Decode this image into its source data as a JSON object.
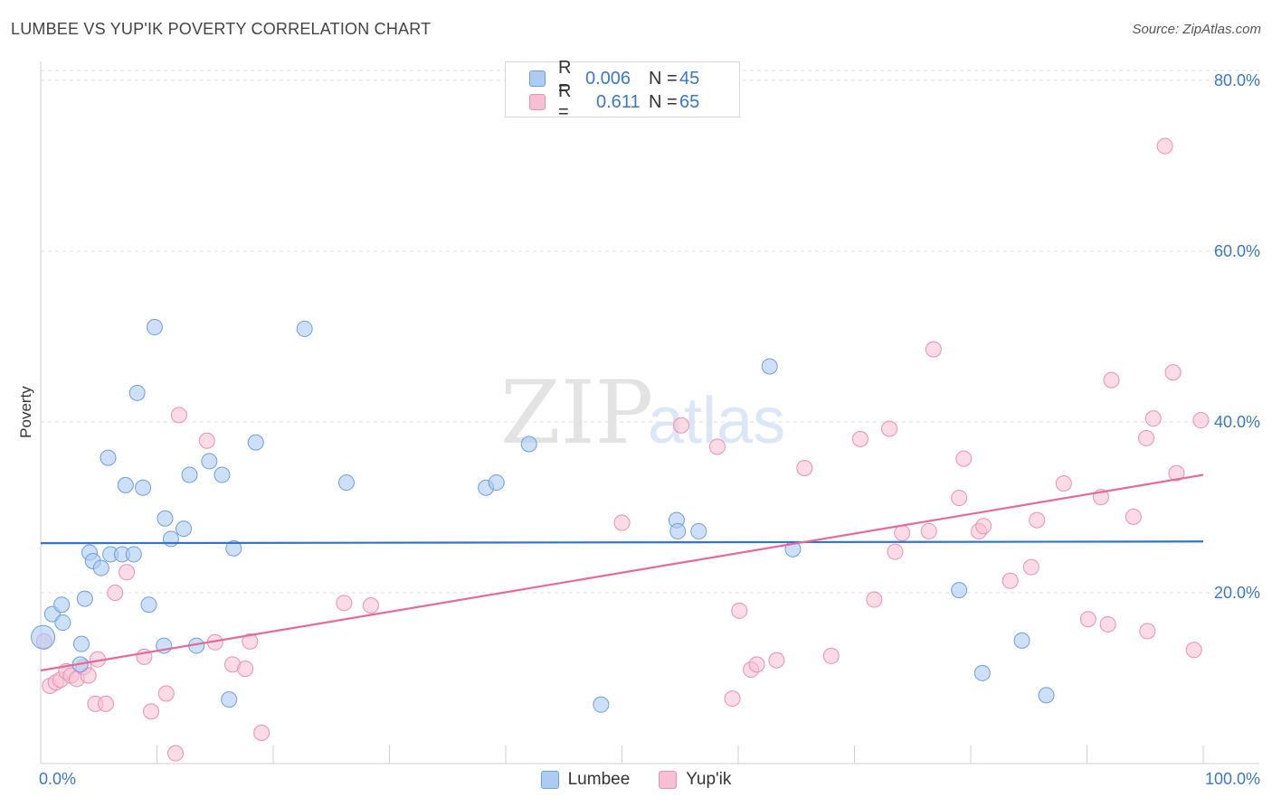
{
  "header": {
    "title": "LUMBEE VS YUP'IK POVERTY CORRELATION CHART",
    "source": "Source: ZipAtlas.com"
  },
  "watermark": {
    "zip": "ZIP",
    "atlas": "atlas"
  },
  "legend": {
    "rows": [
      {
        "r_label": "R =",
        "r_value": "0.006",
        "n_label": "N =",
        "n_value": "45"
      },
      {
        "r_label": "R =",
        "r_value": "0.611",
        "n_label": "N =",
        "n_value": "65"
      }
    ]
  },
  "bottom_legend": {
    "lumbee": "Lumbee",
    "yupik": "Yup'ik"
  },
  "colors": {
    "lumbee_fill": "#aeccf2",
    "lumbee_stroke": "#6c9ee0",
    "lumbee_line": "#2f74cf",
    "yupik_fill": "#f7bfd2",
    "yupik_stroke": "#ec8fb0",
    "yupik_line": "#e56a97",
    "axis_text": "#3a78c9",
    "grid": "#dddddd"
  },
  "chart_data": {
    "type": "scatter",
    "title": "LUMBEE VS YUP'IK POVERTY CORRELATION CHART",
    "xlabel": "",
    "ylabel": "Poverty",
    "xlim": [
      0,
      100
    ],
    "ylim": [
      0,
      82
    ],
    "x_tick_labels": [
      "0.0%",
      "100.0%"
    ],
    "y_ticks": [
      20,
      40,
      60,
      80
    ],
    "y_tick_labels": [
      "20.0%",
      "40.0%",
      "60.0%",
      "80.0%"
    ],
    "series": [
      {
        "name": "Lumbee",
        "r": 0.006,
        "n": 45,
        "trend": {
          "x": [
            0,
            100
          ],
          "y": [
            25.8,
            26.0
          ]
        },
        "points": [
          [
            0.2,
            14.8
          ],
          [
            1.0,
            17.5
          ],
          [
            1.8,
            18.6
          ],
          [
            1.9,
            16.5
          ],
          [
            3.5,
            14.0
          ],
          [
            3.8,
            19.3
          ],
          [
            4.2,
            24.7
          ],
          [
            4.5,
            23.7
          ],
          [
            5.2,
            22.9
          ],
          [
            6.0,
            24.5
          ],
          [
            7.0,
            24.5
          ],
          [
            8.0,
            24.5
          ],
          [
            5.8,
            35.8
          ],
          [
            7.3,
            32.6
          ],
          [
            8.8,
            32.3
          ],
          [
            8.3,
            43.4
          ],
          [
            9.3,
            18.6
          ],
          [
            9.8,
            51.1
          ],
          [
            10.7,
            28.7
          ],
          [
            10.6,
            13.8
          ],
          [
            11.2,
            26.3
          ],
          [
            12.3,
            27.5
          ],
          [
            12.8,
            33.8
          ],
          [
            13.4,
            13.8
          ],
          [
            14.5,
            35.4
          ],
          [
            15.6,
            33.8
          ],
          [
            16.2,
            7.5
          ],
          [
            16.6,
            25.2
          ],
          [
            18.5,
            37.6
          ],
          [
            22.7,
            50.9
          ],
          [
            26.3,
            32.9
          ],
          [
            3.4,
            11.6
          ],
          [
            38.3,
            32.3
          ],
          [
            39.2,
            32.9
          ],
          [
            42.0,
            37.4
          ],
          [
            48.2,
            6.9
          ],
          [
            54.7,
            28.5
          ],
          [
            54.8,
            27.2
          ],
          [
            56.6,
            27.2
          ],
          [
            62.7,
            46.5
          ],
          [
            64.7,
            25.1
          ],
          [
            79.0,
            20.3
          ],
          [
            81.0,
            10.6
          ],
          [
            84.4,
            14.4
          ],
          [
            86.5,
            8.0
          ]
        ]
      },
      {
        "name": "Yup'ik",
        "r": 0.611,
        "n": 65,
        "trend": {
          "x": [
            0,
            100
          ],
          "y": [
            10.9,
            33.8
          ]
        },
        "points": [
          [
            0.3,
            14.3
          ],
          [
            0.8,
            9.1
          ],
          [
            1.3,
            9.5
          ],
          [
            1.7,
            9.8
          ],
          [
            2.2,
            10.8
          ],
          [
            2.6,
            10.3
          ],
          [
            3.1,
            9.9
          ],
          [
            3.7,
            11.3
          ],
          [
            4.1,
            10.3
          ],
          [
            4.9,
            12.2
          ],
          [
            4.7,
            7.0
          ],
          [
            5.6,
            7.0
          ],
          [
            6.4,
            20.0
          ],
          [
            7.4,
            22.4
          ],
          [
            8.9,
            12.5
          ],
          [
            9.5,
            6.1
          ],
          [
            10.8,
            8.2
          ],
          [
            11.6,
            1.2
          ],
          [
            11.9,
            40.8
          ],
          [
            14.3,
            37.8
          ],
          [
            15.0,
            14.2
          ],
          [
            16.5,
            11.6
          ],
          [
            17.6,
            11.1
          ],
          [
            18.0,
            14.3
          ],
          [
            19.0,
            3.6
          ],
          [
            26.1,
            18.8
          ],
          [
            28.4,
            18.5
          ],
          [
            50.0,
            28.2
          ],
          [
            55.1,
            39.6
          ],
          [
            58.2,
            37.1
          ],
          [
            59.5,
            7.6
          ],
          [
            60.1,
            17.9
          ],
          [
            61.1,
            11.0
          ],
          [
            61.6,
            11.6
          ],
          [
            63.3,
            12.1
          ],
          [
            65.7,
            34.6
          ],
          [
            68.0,
            12.6
          ],
          [
            70.5,
            38.0
          ],
          [
            71.7,
            19.2
          ],
          [
            73.0,
            39.2
          ],
          [
            73.5,
            24.8
          ],
          [
            74.1,
            27.0
          ],
          [
            76.4,
            27.2
          ],
          [
            76.8,
            48.5
          ],
          [
            79.0,
            31.1
          ],
          [
            79.4,
            35.7
          ],
          [
            80.7,
            27.2
          ],
          [
            81.1,
            27.8
          ],
          [
            83.4,
            21.4
          ],
          [
            85.2,
            23.0
          ],
          [
            85.7,
            28.5
          ],
          [
            88.0,
            32.8
          ],
          [
            90.1,
            16.9
          ],
          [
            91.2,
            31.2
          ],
          [
            91.8,
            16.3
          ],
          [
            92.1,
            44.9
          ],
          [
            94.0,
            28.9
          ],
          [
            95.1,
            38.1
          ],
          [
            95.2,
            15.5
          ],
          [
            95.7,
            40.4
          ],
          [
            96.7,
            72.3
          ],
          [
            97.4,
            45.8
          ],
          [
            97.7,
            34.0
          ],
          [
            99.8,
            40.2
          ],
          [
            99.2,
            13.3
          ]
        ]
      }
    ]
  }
}
